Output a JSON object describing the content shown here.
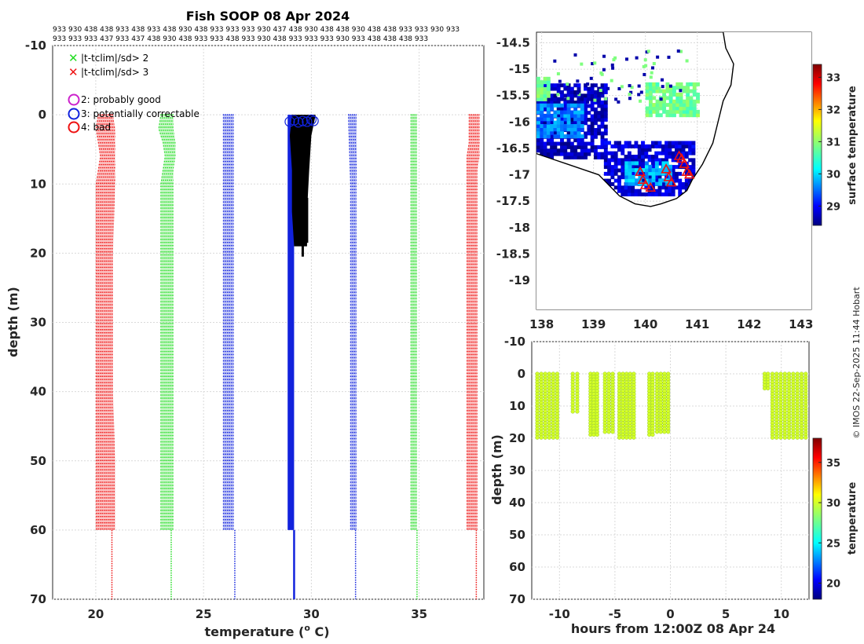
{
  "page_title": "Fish SOOP 08 Apr 2024",
  "id_rows": [
    "933 930 438 438 933 438 933 438 930 438 933 933 933 930 437 438 930 438 438 930 438 438 933 933 930 933",
    "933 933 933 437 933 437 438 930 438 933 933 438 933 930 438 933 933 933 930 933 438 438 438 933"
  ],
  "credit": "© IMOS 22-Sep-2025 11:44 Hobart",
  "chart_data": [
    {
      "type": "line",
      "name": "profile",
      "xlabel": "temperature (",
      "xlabel_sup": "o",
      "xlabel_tail": " C)",
      "ylabel": "depth (m)",
      "xlim": [
        18,
        38
      ],
      "ylim": [
        -10,
        70
      ],
      "xticks": [
        20,
        25,
        30,
        35
      ],
      "yticks": [
        -10,
        0,
        10,
        20,
        30,
        40,
        50,
        60,
        70
      ],
      "legend": [
        {
          "marker": "x",
          "color": "#22dd22",
          "label": "|t-tclim|/sd> 2"
        },
        {
          "marker": "x",
          "color": "#ee1111",
          "label": "|t-tclim|/sd> 3"
        },
        {
          "marker": "o",
          "color": "#cc22cc",
          "label": "2: probably good"
        },
        {
          "marker": "o",
          "color": "#1122dd",
          "label": "3: potentially correctable"
        },
        {
          "marker": "o",
          "color": "#ee1111",
          "label": "4: bad"
        }
      ],
      "envelopes": [
        {
          "name": "clim -3sd",
          "color": "#ee1111",
          "depth": [
            0,
            2,
            4,
            6,
            8,
            10,
            20,
            30,
            40,
            50,
            60
          ],
          "x_left": [
            20.1,
            20.0,
            20.1,
            20.2,
            20.1,
            20.0,
            20.0,
            20.0,
            20.0,
            20.0,
            20.0
          ],
          "x_right": [
            20.8,
            20.9,
            20.9,
            20.9,
            20.9,
            20.9,
            20.8,
            20.8,
            20.8,
            20.9,
            20.9
          ],
          "x_deep": 20.75
        },
        {
          "name": "clim -2sd",
          "color": "#22dd22",
          "depth": [
            0,
            2,
            4,
            6,
            8,
            10,
            20,
            30,
            40,
            50,
            60
          ],
          "x_left": [
            23.0,
            22.9,
            23.1,
            23.2,
            23.1,
            23.0,
            23.0,
            23.0,
            23.0,
            23.0,
            23.0
          ],
          "x_right": [
            23.6,
            23.6,
            23.7,
            23.7,
            23.6,
            23.6,
            23.6,
            23.6,
            23.6,
            23.6,
            23.6
          ],
          "x_deep": 23.5
        },
        {
          "name": "clim -1sd",
          "color": "#1122dd",
          "depth": [
            0,
            10,
            20,
            30,
            40,
            50,
            60
          ],
          "x_left": [
            25.9,
            25.9,
            25.9,
            25.9,
            25.9,
            25.9,
            25.9
          ],
          "x_right": [
            26.4,
            26.4,
            26.4,
            26.4,
            26.4,
            26.4,
            26.4
          ],
          "x_deep": 26.45
        },
        {
          "name": "clim +1sd",
          "color": "#1122dd",
          "depth": [
            0,
            10,
            20,
            30,
            40,
            50,
            60
          ],
          "x_left": [
            31.7,
            31.8,
            31.8,
            31.8,
            31.8,
            31.8,
            31.8
          ],
          "x_right": [
            32.1,
            32.1,
            32.1,
            32.1,
            32.1,
            32.1,
            32.1
          ],
          "x_deep": 32.05
        },
        {
          "name": "clim +2sd",
          "color": "#22dd22",
          "depth": [
            0,
            10,
            20,
            30,
            40,
            50,
            60
          ],
          "x_left": [
            34.6,
            34.6,
            34.6,
            34.6,
            34.6,
            34.6,
            34.6
          ],
          "x_right": [
            34.9,
            34.9,
            34.9,
            34.9,
            34.9,
            34.9,
            34.9
          ],
          "x_deep": 34.9
        },
        {
          "name": "clim +3sd",
          "color": "#ee1111",
          "depth": [
            0,
            2,
            4,
            6,
            8,
            10,
            20,
            30,
            40,
            50,
            60
          ],
          "x_left": [
            37.3,
            37.3,
            37.3,
            37.2,
            37.2,
            37.2,
            37.2,
            37.2,
            37.2,
            37.2,
            37.2
          ],
          "x_right": [
            37.8,
            37.8,
            37.8,
            37.8,
            37.7,
            37.7,
            37.7,
            37.7,
            37.7,
            37.7,
            37.7
          ],
          "x_deep": 37.65
        }
      ],
      "clim_mean": {
        "color": "#1122dd",
        "x_left": 28.9,
        "x_right": 29.2,
        "depth_top": 0,
        "depth_bottom": 60,
        "x_deep": 29.2
      },
      "profiles": {
        "color": "#000000",
        "x_left": [
          29.1,
          29.0,
          29.1,
          29.1,
          29.2
        ],
        "x_right": [
          30.2,
          30.0,
          29.9,
          29.8,
          29.8
        ],
        "depth": [
          0,
          3,
          8,
          14,
          19
        ],
        "bottoms": [
          {
            "x": 29.4,
            "depth": 17.5
          },
          {
            "x": 29.6,
            "depth": 20.5
          },
          {
            "x": 29.8,
            "depth": 18.5
          }
        ]
      },
      "flag_circles": {
        "color": "#1122dd",
        "x": [
          29.0,
          29.2,
          29.4,
          29.6,
          29.8,
          30.0,
          30.1
        ],
        "depth": [
          1.0,
          0.8,
          1.1,
          0.9,
          1.0,
          0.7,
          0.9
        ]
      }
    },
    {
      "type": "heatmap",
      "name": "map",
      "xlim": [
        137.9,
        143.2
      ],
      "ylim": [
        -19.55,
        -14.3
      ],
      "xticks": [
        138,
        139,
        140,
        141,
        142,
        143
      ],
      "yticks": [
        -14.5,
        -15,
        -15.5,
        -16,
        -16.5,
        -17,
        -17.5,
        -18,
        -18.5,
        -19
      ],
      "colorbar": {
        "label": "surface temperature",
        "ticks": [
          29,
          30,
          31,
          32,
          33
        ],
        "range": [
          28.4,
          33.4
        ]
      },
      "coastline": [
        [
          141.5,
          -14.3
        ],
        [
          141.55,
          -14.6
        ],
        [
          141.7,
          -14.9
        ],
        [
          141.65,
          -15.3
        ],
        [
          141.5,
          -15.6
        ],
        [
          141.4,
          -16.0
        ],
        [
          141.3,
          -16.4
        ],
        [
          141.1,
          -16.8
        ],
        [
          140.9,
          -17.1
        ],
        [
          140.8,
          -17.3
        ],
        [
          140.6,
          -17.45
        ],
        [
          140.3,
          -17.55
        ],
        [
          140.1,
          -17.6
        ],
        [
          139.8,
          -17.55
        ],
        [
          139.5,
          -17.4
        ],
        [
          139.3,
          -17.2
        ],
        [
          139.1,
          -17.0
        ],
        [
          138.8,
          -16.9
        ],
        [
          138.5,
          -16.8
        ],
        [
          138.2,
          -16.7
        ],
        [
          137.9,
          -16.6
        ]
      ],
      "sst_regions": [
        {
          "name": "gulf-west-cool",
          "lon": [
            137.9,
            139.2
          ],
          "lat": [
            -16.7,
            -15.3
          ],
          "value": 28.7
        },
        {
          "name": "gulf-west-warm-band",
          "lon": [
            137.9,
            138.8
          ],
          "lat": [
            -16.3,
            -15.7
          ],
          "value": 29.6
        },
        {
          "name": "gulf-south-cool",
          "lon": [
            139.2,
            140.9
          ],
          "lat": [
            -17.4,
            -16.4
          ],
          "value": 28.8
        },
        {
          "name": "gulf-south-warm",
          "lon": [
            139.6,
            140.5
          ],
          "lat": [
            -17.2,
            -16.8
          ],
          "value": 29.8
        },
        {
          "name": "northwest-coast-warm",
          "lon": [
            137.9,
            138.1
          ],
          "lat": [
            -15.6,
            -15.2
          ],
          "value": 30.8
        },
        {
          "name": "north-central-warm",
          "lon": [
            140.0,
            141.0
          ],
          "lat": [
            -15.9,
            -15.3
          ],
          "value": 30.8
        }
      ],
      "stations": {
        "marker": "triangle",
        "color": "#ee1111",
        "lon": [
          139.9,
          139.95,
          140.0,
          140.4,
          140.45,
          140.5,
          140.7,
          140.75,
          140.8,
          140.65,
          140.85,
          140.1
        ],
        "lat": [
          -16.95,
          -17.1,
          -17.2,
          -16.9,
          -17.05,
          -17.15,
          -16.7,
          -16.8,
          -16.95,
          -16.65,
          -17.0,
          -17.25
        ]
      }
    },
    {
      "type": "scatter",
      "name": "time-depth",
      "xlabel": "hours from 12:00Z 08 Apr 24",
      "ylabel": "depth (m)",
      "xlim": [
        -12.5,
        12.5
      ],
      "ylim": [
        -10,
        70
      ],
      "xticks": [
        -10,
        -5,
        0,
        5,
        10
      ],
      "yticks": [
        -10,
        0,
        10,
        20,
        30,
        40,
        50,
        60,
        70
      ],
      "colorbar": {
        "label": "temperature",
        "ticks": [
          20,
          25,
          30,
          35
        ],
        "range": [
          18,
          38
        ]
      },
      "casts": [
        {
          "x_start": -12.0,
          "x_end": -10.2,
          "depth_top": 0,
          "depth_bottom": 20
        },
        {
          "x_start": -8.8,
          "x_end": -8.4,
          "depth_top": 0,
          "depth_bottom": 12
        },
        {
          "x_start": -7.2,
          "x_end": -6.6,
          "depth_top": 0,
          "depth_bottom": 19
        },
        {
          "x_start": -5.9,
          "x_end": -5.2,
          "depth_top": 0,
          "depth_bottom": 18
        },
        {
          "x_start": -4.6,
          "x_end": -3.3,
          "depth_top": 0,
          "depth_bottom": 20
        },
        {
          "x_start": -1.9,
          "x_end": -1.6,
          "depth_top": 0,
          "depth_bottom": 19
        },
        {
          "x_start": -1.2,
          "x_end": -0.2,
          "depth_top": 0,
          "depth_bottom": 18
        },
        {
          "x_start": 8.5,
          "x_end": 8.8,
          "depth_top": 0,
          "depth_bottom": 5
        },
        {
          "x_start": 9.2,
          "x_end": 12.2,
          "depth_top": 0,
          "depth_bottom": 20
        }
      ],
      "point_temperature": 30.0
    }
  ]
}
